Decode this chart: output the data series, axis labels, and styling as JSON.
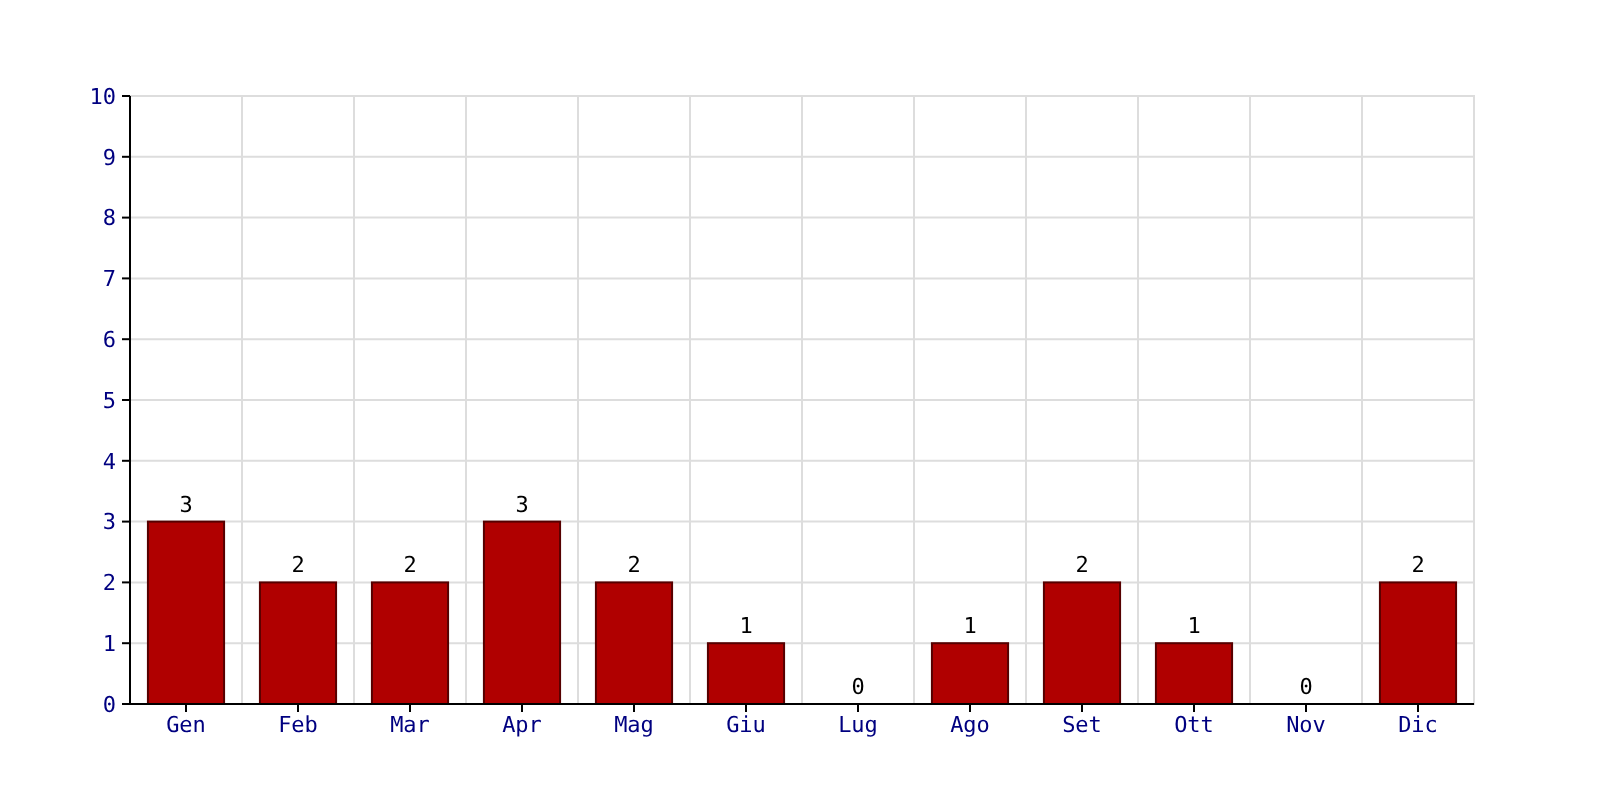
{
  "chart_data": {
    "type": "bar",
    "categories": [
      "Gen",
      "Feb",
      "Mar",
      "Apr",
      "Mag",
      "Giu",
      "Lug",
      "Ago",
      "Set",
      "Ott",
      "Nov",
      "Dic"
    ],
    "values": [
      3,
      2,
      2,
      3,
      2,
      1,
      0,
      1,
      2,
      1,
      0,
      2
    ],
    "color": "#b00000",
    "ylim": [
      0,
      10
    ],
    "yticks": [
      0,
      1,
      2,
      3,
      4,
      5,
      6,
      7,
      8,
      9,
      10
    ],
    "grid": true,
    "data_labels": true
  }
}
